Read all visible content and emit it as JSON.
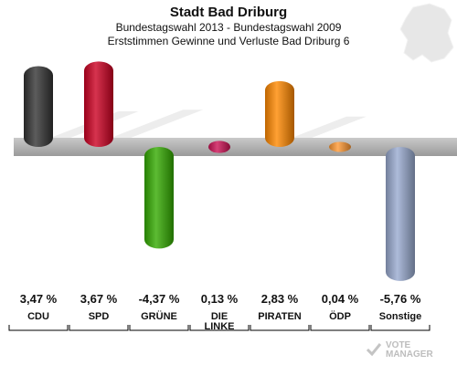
{
  "title": "Stadt Bad Driburg",
  "subtitle_1": "Bundestagswahl 2013 - Bundestagswahl 2009",
  "subtitle_2": "Erststimmen Gewinne und Verluste Bad Driburg 6",
  "watermark": {
    "line1": "VOTE",
    "line2": "MANAGER"
  },
  "chart_data": {
    "type": "bar",
    "categories": [
      "CDU",
      "SPD",
      "GRÜNE",
      "DIE LINKE",
      "PIRATEN",
      "ÖDP",
      "Sonstige"
    ],
    "category_lines": [
      [
        "CDU"
      ],
      [
        "SPD"
      ],
      [
        "GRÜNE"
      ],
      [
        "DIE",
        "LINKE"
      ],
      [
        "PIRATEN"
      ],
      [
        "ÖDP"
      ],
      [
        "Sonstige"
      ]
    ],
    "values": [
      3.47,
      3.67,
      -4.37,
      0.13,
      2.83,
      0.04,
      -5.76
    ],
    "value_labels": [
      "3,47 %",
      "3,67 %",
      "-4,37 %",
      "0,13 %",
      "2,83 %",
      "0,04 %",
      "-5,76 %"
    ],
    "colors": [
      "#333333",
      "#cc0022",
      "#33aa00",
      "#cc1155",
      "#ff8800",
      "#ff9933",
      "#99aad0"
    ],
    "ylim": [
      -6,
      4
    ],
    "grid": false,
    "legend": "none"
  }
}
